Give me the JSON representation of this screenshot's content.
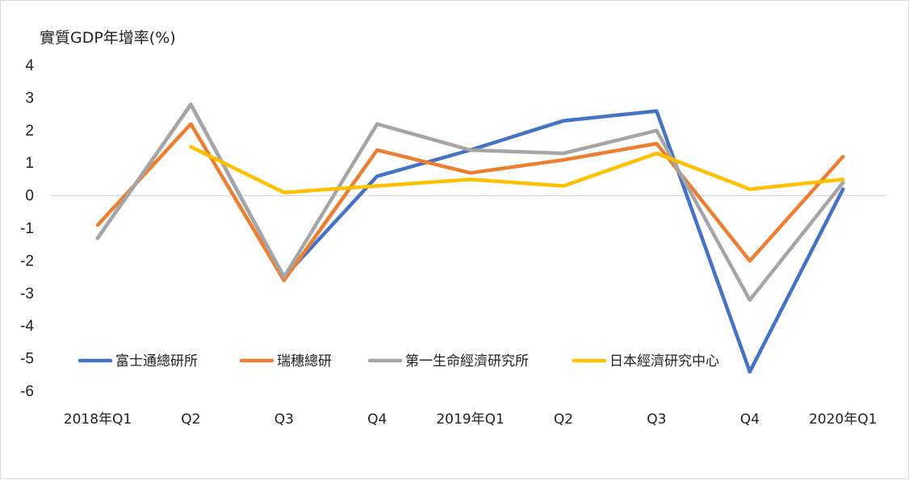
{
  "chart_data": {
    "type": "line",
    "title": "",
    "ylabel": "實質GDP年增率(%)",
    "xlabel": "",
    "categories": [
      "2018年Q1",
      "Q2",
      "Q3",
      "Q4",
      "2019年Q1",
      "Q2",
      "Q3",
      "Q4",
      "2020年Q1"
    ],
    "ylim": [
      -6,
      4
    ],
    "yticks": [
      4,
      3,
      2,
      1,
      0,
      -1,
      -2,
      -3,
      -4,
      -5,
      -6
    ],
    "legend_position": "lower-left",
    "series": [
      {
        "name": "富士通總研所",
        "color": "#4472C4",
        "values": [
          -1.3,
          2.8,
          -2.5,
          0.6,
          1.4,
          2.3,
          2.6,
          -5.4,
          0.2
        ]
      },
      {
        "name": "瑞穗總研",
        "color": "#ED7D31",
        "values": [
          -0.9,
          2.2,
          -2.6,
          1.4,
          0.7,
          1.1,
          1.6,
          -2.0,
          1.2
        ]
      },
      {
        "name": "第一生命經濟研究所",
        "color": "#A5A5A5",
        "values": [
          -1.3,
          2.8,
          -2.5,
          2.2,
          1.4,
          1.3,
          2.0,
          -3.2,
          0.4
        ]
      },
      {
        "name": "日本經濟研究中心",
        "color": "#FFC000",
        "values": [
          null,
          1.5,
          0.1,
          0.3,
          0.5,
          0.3,
          1.3,
          0.2,
          0.5
        ]
      }
    ]
  }
}
